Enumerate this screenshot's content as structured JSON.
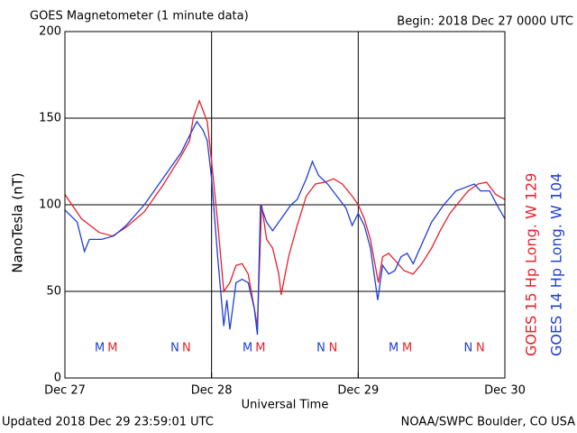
{
  "chart_data": {
    "type": "line",
    "title": "GOES Magnetometer (1 minute data)",
    "subtitle": "Begin:  2018 Dec 27 0000 UTC",
    "ylabel": "NanoTesla (nT)",
    "xlabel": "Universal Time",
    "footer_left": "Updated 2018 Dec 29 23:59:01 UTC",
    "footer_right": "NOAA/SWPC Boulder, CO USA",
    "xlim": [
      0,
      72
    ],
    "xticks": [
      {
        "value": 0,
        "label": "Dec 27"
      },
      {
        "value": 24,
        "label": "Dec 28"
      },
      {
        "value": 48,
        "label": "Dec 29"
      },
      {
        "value": 72,
        "label": "Dec 30"
      }
    ],
    "ylim": [
      0,
      200
    ],
    "yticks": [
      0,
      50,
      100,
      150,
      200
    ],
    "grid": true,
    "series": [
      {
        "name": "GOES 15 Hp  Long. W 129",
        "color": "#e8202a",
        "x": [
          0,
          2.7,
          5.6,
          7.8,
          10,
          13,
          16,
          19,
          20.4,
          21,
          22,
          23.3,
          24,
          25,
          26,
          27,
          28,
          29,
          30,
          31,
          31.5,
          32.2,
          33,
          34,
          35,
          35.4,
          36.6,
          38,
          39.5,
          41,
          42.5,
          44,
          45.4,
          47,
          48,
          49,
          50,
          51.3,
          52,
          53,
          54,
          55.5,
          57,
          58.4,
          60,
          61.4,
          63,
          64.6,
          66,
          67.6,
          69,
          70.5,
          72
        ],
        "values": [
          106,
          92,
          84,
          82,
          87,
          96,
          111,
          128,
          137,
          150,
          160,
          148,
          125,
          90,
          50,
          55,
          65,
          66,
          60,
          40,
          30,
          100,
          80,
          75,
          60,
          48,
          70,
          88,
          105,
          112,
          113,
          115,
          112,
          105,
          100,
          92,
          80,
          55,
          70,
          72,
          68,
          62,
          60,
          66,
          75,
          85,
          95,
          102,
          108,
          112,
          113,
          106,
          103
        ]
      },
      {
        "name": "GOES 14 Hp  Long. W 104",
        "color": "#1f3fd8",
        "x": [
          0,
          2,
          3.2,
          4,
          6,
          8,
          10,
          13,
          16,
          19,
          20.4,
          21.6,
          22.6,
          23.3,
          24,
          25,
          26,
          26.5,
          27,
          28,
          29,
          30,
          31,
          31.5,
          32,
          33,
          34,
          35,
          36,
          37,
          38,
          39.5,
          40.5,
          41.5,
          43,
          44.5,
          46,
          47,
          48,
          49,
          50,
          51.2,
          52,
          53,
          54,
          55,
          56,
          57,
          58.5,
          60,
          62,
          64,
          65.5,
          67,
          68,
          69.5,
          71,
          72
        ],
        "values": [
          97,
          90,
          73,
          80,
          80,
          82,
          88,
          100,
          115,
          130,
          140,
          148,
          143,
          137,
          115,
          70,
          30,
          45,
          28,
          55,
          57,
          55,
          40,
          25,
          100,
          90,
          85,
          90,
          95,
          100,
          103,
          115,
          125,
          117,
          112,
          105,
          98,
          88,
          95,
          88,
          75,
          45,
          65,
          60,
          62,
          70,
          72,
          66,
          78,
          90,
          100,
          108,
          110,
          112,
          108,
          108,
          98,
          92
        ]
      }
    ],
    "annotations": [
      {
        "text": "M",
        "x": 5.7,
        "color": "#1f3fd8"
      },
      {
        "text": "M",
        "x": 7.8,
        "color": "#e8202a"
      },
      {
        "text": "N",
        "x": 18,
        "color": "#1f3fd8"
      },
      {
        "text": "N",
        "x": 19.9,
        "color": "#e8202a"
      },
      {
        "text": "M",
        "x": 29.9,
        "color": "#1f3fd8"
      },
      {
        "text": "M",
        "x": 32,
        "color": "#e8202a"
      },
      {
        "text": "N",
        "x": 41.9,
        "color": "#1f3fd8"
      },
      {
        "text": "N",
        "x": 43.9,
        "color": "#e8202a"
      },
      {
        "text": "M",
        "x": 53.8,
        "color": "#1f3fd8"
      },
      {
        "text": "M",
        "x": 56,
        "color": "#e8202a"
      },
      {
        "text": "N",
        "x": 66,
        "color": "#1f3fd8"
      },
      {
        "text": "N",
        "x": 68,
        "color": "#e8202a"
      }
    ]
  }
}
